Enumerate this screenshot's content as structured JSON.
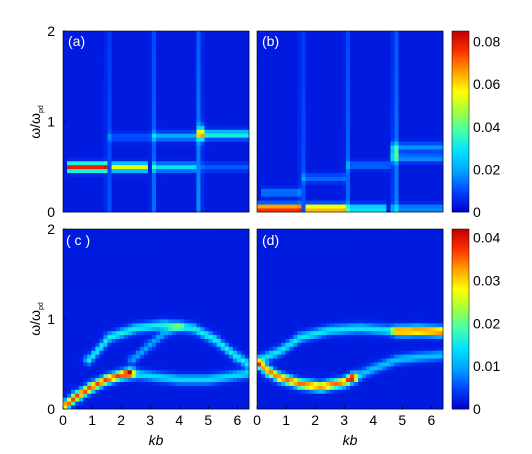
{
  "chart_data": {
    "type": "heatmap",
    "xlabel": "kb",
    "ylabel": "ω/ω_pd",
    "ylabel_main": "ω/ω",
    "ylabel_sub": "pd",
    "xlim": [
      0,
      6.4
    ],
    "ylim": [
      0,
      2
    ],
    "x_ticks": [
      "0",
      "1",
      "2",
      "3",
      "4",
      "5",
      "6"
    ],
    "y_ticks": [
      "0",
      "1",
      "2"
    ],
    "colormap": [
      "#0000c8",
      "#0040ff",
      "#00a0ff",
      "#00e0ff",
      "#40ffb0",
      "#a0ff40",
      "#ffff00",
      "#ffa000",
      "#ff3000",
      "#c00000"
    ],
    "panels": [
      {
        "label": "(a)",
        "colorbar_max": 0.085,
        "colorbar_ticks": [
          "0",
          "0.02",
          "0.04",
          "0.06",
          "0.08"
        ],
        "background": 0.004,
        "features": [
          {
            "kind": "band",
            "from": 0.1,
            "to": 1.55,
            "y": 0.5,
            "value": 0.075
          },
          {
            "kind": "band",
            "from": 1.65,
            "to": 2.95,
            "y": 0.5,
            "value": 0.05
          },
          {
            "kind": "band",
            "from": 3.05,
            "to": 4.6,
            "y": 0.5,
            "value": 0.025
          },
          {
            "kind": "band",
            "from": 4.7,
            "to": 6.4,
            "y": 0.5,
            "value": 0.008
          },
          {
            "kind": "band",
            "from": 1.55,
            "to": 3.0,
            "y": 0.83,
            "value": 0.008
          },
          {
            "kind": "band",
            "from": 3.0,
            "to": 4.6,
            "y": 0.84,
            "value": 0.018
          },
          {
            "kind": "band",
            "from": 4.6,
            "to": 6.4,
            "y": 0.86,
            "value": 0.03
          },
          {
            "kind": "spot",
            "x": 4.75,
            "y": 0.87,
            "value": 0.045
          },
          {
            "kind": "column",
            "x": 1.55,
            "value": 0.012
          },
          {
            "kind": "column",
            "x": 3.1,
            "value": 0.012
          },
          {
            "kind": "column",
            "x": 4.7,
            "value": 0.018
          }
        ]
      },
      {
        "label": "(b)",
        "colorbar_max": 0.085,
        "colorbar_ticks": [
          "0",
          "0.02",
          "0.04",
          "0.06",
          "0.08"
        ],
        "background": 0.004,
        "features": [
          {
            "kind": "band",
            "from": 0.05,
            "to": 1.55,
            "y": 0.04,
            "value": 0.085
          },
          {
            "kind": "band",
            "from": 1.65,
            "to": 3.0,
            "y": 0.04,
            "value": 0.07
          },
          {
            "kind": "band",
            "from": 3.1,
            "to": 4.5,
            "y": 0.04,
            "value": 0.03
          },
          {
            "kind": "band",
            "from": 4.6,
            "to": 6.4,
            "y": 0.04,
            "value": 0.015
          },
          {
            "kind": "band",
            "from": 0.1,
            "to": 1.55,
            "y": 0.22,
            "value": 0.012
          },
          {
            "kind": "band",
            "from": 1.6,
            "to": 3.0,
            "y": 0.38,
            "value": 0.01
          },
          {
            "kind": "band",
            "from": 3.0,
            "to": 4.6,
            "y": 0.52,
            "value": 0.01
          },
          {
            "kind": "band",
            "from": 4.6,
            "to": 6.4,
            "y": 0.6,
            "value": 0.014
          },
          {
            "kind": "band",
            "from": 4.6,
            "to": 6.4,
            "y": 0.72,
            "value": 0.014
          },
          {
            "kind": "column",
            "x": 1.55,
            "value": 0.012
          },
          {
            "kind": "column",
            "x": 3.1,
            "value": 0.012
          },
          {
            "kind": "column",
            "x": 4.75,
            "value": 0.02
          },
          {
            "kind": "spot",
            "x": 4.75,
            "y": 0.65,
            "value": 0.025
          }
        ]
      },
      {
        "label": "( c )",
        "colorbar_max": 0.042,
        "colorbar_ticks": [
          "0",
          "0.01",
          "0.02",
          "0.03",
          "0.04"
        ],
        "background": 0.002,
        "features": [
          {
            "kind": "curve",
            "points": [
              [
                0.1,
                0.05
              ],
              [
                0.5,
                0.15
              ],
              [
                1.0,
                0.25
              ],
              [
                1.5,
                0.33
              ],
              [
                2.0,
                0.38
              ],
              [
                2.3,
                0.4
              ]
            ],
            "value": 0.035
          },
          {
            "kind": "curve",
            "points": [
              [
                2.3,
                0.4
              ],
              [
                3.0,
                0.37
              ],
              [
                4.0,
                0.33
              ],
              [
                5.0,
                0.33
              ],
              [
                6.0,
                0.38
              ],
              [
                6.4,
                0.4
              ]
            ],
            "value": 0.012
          },
          {
            "kind": "curve",
            "points": [
              [
                0.9,
                0.55
              ],
              [
                1.6,
                0.8
              ],
              [
                2.5,
                0.9
              ],
              [
                3.5,
                0.94
              ],
              [
                4.5,
                0.9
              ],
              [
                5.2,
                0.78
              ],
              [
                6.0,
                0.58
              ],
              [
                6.4,
                0.5
              ]
            ],
            "value": 0.014
          },
          {
            "kind": "curve",
            "points": [
              [
                2.4,
                0.55
              ],
              [
                3.0,
                0.72
              ],
              [
                3.5,
                0.85
              ],
              [
                4.0,
                0.92
              ]
            ],
            "value": 0.008
          }
        ]
      },
      {
        "label": "(d)",
        "colorbar_max": 0.042,
        "colorbar_ticks": [
          "0",
          "0.01",
          "0.02",
          "0.03",
          "0.04"
        ],
        "background": 0.002,
        "features": [
          {
            "kind": "curve",
            "points": [
              [
                0.1,
                0.5
              ],
              [
                0.4,
                0.42
              ],
              [
                0.8,
                0.35
              ],
              [
                1.5,
                0.28
              ],
              [
                2.2,
                0.25
              ],
              [
                3.0,
                0.3
              ],
              [
                3.3,
                0.35
              ]
            ],
            "value": 0.033
          },
          {
            "kind": "curve",
            "points": [
              [
                3.3,
                0.35
              ],
              [
                4.0,
                0.45
              ],
              [
                4.8,
                0.55
              ],
              [
                5.5,
                0.58
              ],
              [
                6.4,
                0.6
              ]
            ],
            "value": 0.01
          },
          {
            "kind": "curve",
            "points": [
              [
                0.1,
                0.55
              ],
              [
                0.8,
                0.65
              ],
              [
                1.5,
                0.8
              ],
              [
                2.5,
                0.88
              ],
              [
                3.5,
                0.9
              ],
              [
                4.5,
                0.88
              ],
              [
                5.2,
                0.86
              ],
              [
                6.0,
                0.87
              ],
              [
                6.4,
                0.87
              ]
            ],
            "value": 0.013
          },
          {
            "kind": "curve",
            "points": [
              [
                4.8,
                0.87
              ],
              [
                5.5,
                0.88
              ],
              [
                6.4,
                0.86
              ]
            ],
            "value": 0.022
          }
        ]
      }
    ]
  }
}
